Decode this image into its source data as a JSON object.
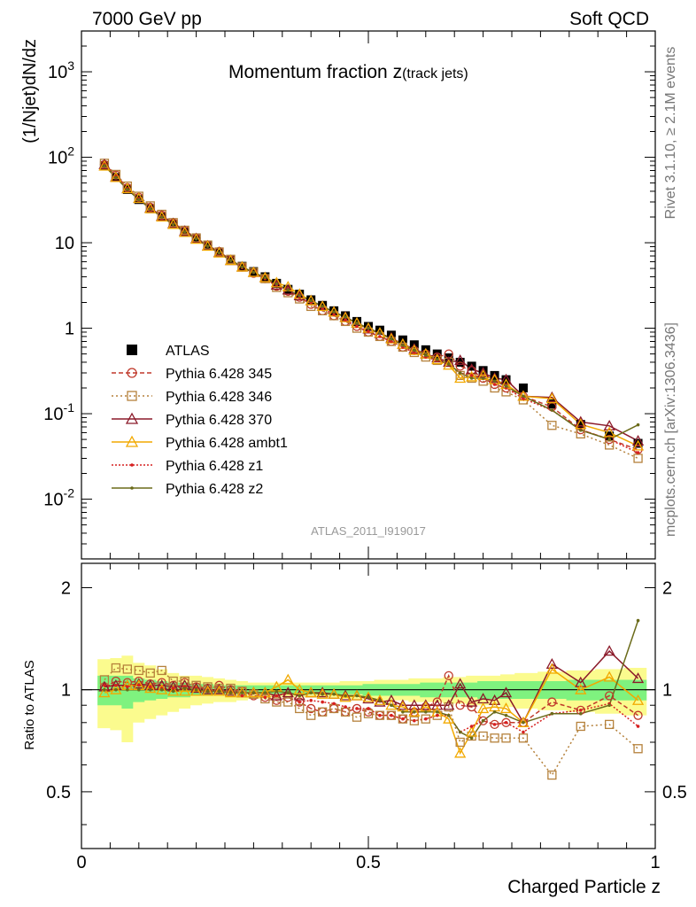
{
  "header": {
    "left_label": "7000 GeV pp",
    "right_label": "Soft QCD"
  },
  "side_text": {
    "rivet": "Rivet 3.1.10, ≥ 2.1M events",
    "mcplots": "mcplots.cern.ch [arXiv:1306.3436]"
  },
  "colors": {
    "data": "#000000",
    "band_inner": "#7ff27f",
    "band_outer": "#fbfb8e",
    "p345": "#c0392b",
    "p346": "#b5813b",
    "p370": "#8b1a2a",
    "ambt1": "#f2a900",
    "z1": "#d62020",
    "z2": "#6b6b1a"
  },
  "chart_data": [
    {
      "type": "line",
      "title": "Momentum fraction z",
      "title_sub": "(track jets)",
      "analysis_label": "ATLAS_2011_I919017",
      "ylabel": "(1/Njet)dN/dz",
      "xlabel": "",
      "ylog": true,
      "xlim": [
        0,
        1
      ],
      "ylim": [
        0.002,
        3000
      ],
      "y_ticks": [
        "10^-2",
        "10^-1",
        "1",
        "10",
        "10^2",
        "10^3"
      ],
      "x": [
        0.04,
        0.06,
        0.08,
        0.1,
        0.12,
        0.14,
        0.16,
        0.18,
        0.2,
        0.22,
        0.24,
        0.26,
        0.28,
        0.3,
        0.32,
        0.34,
        0.36,
        0.38,
        0.4,
        0.42,
        0.44,
        0.46,
        0.48,
        0.5,
        0.52,
        0.54,
        0.56,
        0.58,
        0.6,
        0.62,
        0.64,
        0.66,
        0.68,
        0.7,
        0.72,
        0.74,
        0.77,
        0.82,
        0.87,
        0.92,
        0.97
      ],
      "legend_position": "left-middle",
      "series": [
        {
          "name": "ATLAS",
          "key": "data",
          "values": [
            80,
            58,
            42,
            32,
            25,
            20,
            16.5,
            13.3,
            11.1,
            9.2,
            7.7,
            6.3,
            5.3,
            4.6,
            4.0,
            3.35,
            2.85,
            2.5,
            2.15,
            1.85,
            1.6,
            1.4,
            1.2,
            1.05,
            0.95,
            0.83,
            0.73,
            0.64,
            0.56,
            0.5,
            0.45,
            0.4,
            0.36,
            0.32,
            0.28,
            0.25,
            0.2,
            0.13,
            0.075,
            0.055,
            0.045
          ]
        },
        {
          "name": "Pythia 6.428 345",
          "key": "p345",
          "values": [
            82,
            62,
            44,
            34,
            26,
            21,
            17,
            14,
            11.3,
            9.3,
            7.9,
            6.3,
            5.2,
            4.4,
            3.8,
            3.1,
            2.7,
            2.3,
            1.9,
            1.6,
            1.4,
            1.2,
            1.05,
            0.9,
            0.8,
            0.7,
            0.6,
            0.55,
            0.5,
            0.46,
            0.5,
            0.36,
            0.32,
            0.26,
            0.22,
            0.2,
            0.16,
            0.12,
            0.065,
            0.05,
            0.038
          ]
        },
        {
          "name": "Pythia 6.428 346",
          "key": "p346",
          "values": [
            85,
            63,
            46,
            35,
            27,
            21.5,
            17.2,
            14,
            11.4,
            9.4,
            7.8,
            6.4,
            5.2,
            4.5,
            3.8,
            3.0,
            2.6,
            2.2,
            1.8,
            1.6,
            1.4,
            1.2,
            1.0,
            0.9,
            0.8,
            0.7,
            0.6,
            0.52,
            0.46,
            0.42,
            0.4,
            0.28,
            0.26,
            0.24,
            0.2,
            0.18,
            0.145,
            0.073,
            0.058,
            0.043,
            0.03
          ]
        },
        {
          "name": "Pythia 6.428 370",
          "key": "p370",
          "values": [
            82,
            59,
            43,
            33,
            25.5,
            20.5,
            16.8,
            13.6,
            11.2,
            9.2,
            7.7,
            6.2,
            5.2,
            4.5,
            3.9,
            3.2,
            2.8,
            2.4,
            2.1,
            1.8,
            1.55,
            1.35,
            1.15,
            0.98,
            0.87,
            0.77,
            0.65,
            0.57,
            0.5,
            0.45,
            0.4,
            0.42,
            0.33,
            0.3,
            0.26,
            0.25,
            0.16,
            0.155,
            0.08,
            0.072,
            0.048
          ]
        },
        {
          "name": "Pythia 6.428 ambt1",
          "key": "ambt1",
          "values": [
            79,
            58,
            43,
            33,
            25,
            20,
            16.4,
            13.2,
            11,
            9.1,
            7.6,
            6.2,
            5.2,
            4.5,
            3.9,
            3.4,
            3.05,
            2.5,
            2.1,
            1.8,
            1.55,
            1.33,
            1.15,
            1.0,
            0.88,
            0.75,
            0.65,
            0.55,
            0.5,
            0.43,
            0.37,
            0.26,
            0.27,
            0.28,
            0.25,
            0.22,
            0.16,
            0.15,
            0.075,
            0.06,
            0.042
          ]
        },
        {
          "name": "Pythia 6.428 z1",
          "key": "z1",
          "values": [
            82,
            60,
            43,
            33,
            25.5,
            20.2,
            16.6,
            13.5,
            11.2,
            9.1,
            7.6,
            6.2,
            5.1,
            4.5,
            3.8,
            3.2,
            2.8,
            2.3,
            2.0,
            1.7,
            1.45,
            1.25,
            1.05,
            0.92,
            0.8,
            0.7,
            0.6,
            0.52,
            0.46,
            0.42,
            0.38,
            0.3,
            0.28,
            0.26,
            0.22,
            0.2,
            0.15,
            0.11,
            0.065,
            0.05,
            0.035
          ]
        },
        {
          "name": "Pythia 6.428 z2",
          "key": "z2",
          "values": [
            80,
            58,
            42,
            32,
            25,
            20,
            16.4,
            13.4,
            11.1,
            9.1,
            7.6,
            6.2,
            5.2,
            4.5,
            3.9,
            3.3,
            2.8,
            2.4,
            2.1,
            1.8,
            1.55,
            1.35,
            1.15,
            1.0,
            0.88,
            0.75,
            0.63,
            0.55,
            0.48,
            0.43,
            0.38,
            0.3,
            0.26,
            0.26,
            0.24,
            0.21,
            0.16,
            0.11,
            0.064,
            0.05,
            0.074
          ]
        }
      ]
    },
    {
      "type": "line",
      "title": "",
      "xlabel": "Charged Particle z",
      "ylabel": "Ratio to ATLAS",
      "xlim": [
        0,
        1
      ],
      "ylim": [
        0.34,
        2.36
      ],
      "x_ticks": [
        "0",
        "0.5",
        "1"
      ],
      "y_ticks": [
        "0.5",
        "1",
        "2"
      ],
      "x": [
        0.04,
        0.06,
        0.08,
        0.1,
        0.12,
        0.14,
        0.16,
        0.18,
        0.2,
        0.22,
        0.24,
        0.26,
        0.28,
        0.3,
        0.32,
        0.34,
        0.36,
        0.38,
        0.4,
        0.42,
        0.44,
        0.46,
        0.48,
        0.5,
        0.52,
        0.54,
        0.56,
        0.58,
        0.6,
        0.62,
        0.64,
        0.66,
        0.68,
        0.7,
        0.72,
        0.74,
        0.77,
        0.82,
        0.87,
        0.92,
        0.97
      ],
      "bands": {
        "outer_upper": [
          1.23,
          1.24,
          1.26,
          1.2,
          1.18,
          1.15,
          1.12,
          1.1,
          1.1,
          1.09,
          1.08,
          1.07,
          1.06,
          1.05,
          1.05,
          1.05,
          1.05,
          1.05,
          1.05,
          1.05,
          1.05,
          1.06,
          1.06,
          1.06,
          1.07,
          1.07,
          1.07,
          1.08,
          1.08,
          1.08,
          1.09,
          1.09,
          1.1,
          1.1,
          1.1,
          1.11,
          1.12,
          1.13,
          1.14,
          1.15,
          1.16
        ],
        "outer_lower": [
          0.77,
          0.76,
          0.7,
          0.8,
          0.82,
          0.84,
          0.86,
          0.88,
          0.9,
          0.91,
          0.92,
          0.92,
          0.93,
          0.94,
          0.94,
          0.95,
          0.95,
          0.95,
          0.95,
          0.95,
          0.95,
          0.94,
          0.94,
          0.94,
          0.93,
          0.93,
          0.93,
          0.92,
          0.92,
          0.92,
          0.91,
          0.91,
          0.9,
          0.9,
          0.9,
          0.89,
          0.88,
          0.87,
          0.86,
          0.85,
          0.84
        ],
        "inner_upper": [
          1.1,
          1.1,
          1.1,
          1.08,
          1.07,
          1.06,
          1.05,
          1.05,
          1.04,
          1.04,
          1.03,
          1.03,
          1.03,
          1.03,
          1.03,
          1.03,
          1.03,
          1.03,
          1.03,
          1.03,
          1.03,
          1.03,
          1.03,
          1.04,
          1.04,
          1.04,
          1.04,
          1.04,
          1.05,
          1.05,
          1.05,
          1.05,
          1.05,
          1.06,
          1.06,
          1.06,
          1.06,
          1.06,
          1.07,
          1.07,
          1.07
        ],
        "inner_lower": [
          0.9,
          0.9,
          0.88,
          0.92,
          0.93,
          0.94,
          0.95,
          0.95,
          0.96,
          0.96,
          0.97,
          0.97,
          0.97,
          0.97,
          0.97,
          0.97,
          0.97,
          0.97,
          0.97,
          0.97,
          0.97,
          0.97,
          0.97,
          0.96,
          0.96,
          0.96,
          0.96,
          0.96,
          0.95,
          0.95,
          0.95,
          0.95,
          0.95,
          0.94,
          0.94,
          0.94,
          0.94,
          0.94,
          0.93,
          0.93,
          0.93
        ]
      },
      "series": [
        {
          "name": "Pythia 6.428 345",
          "key": "p345",
          "values": [
            1.02,
            1.06,
            1.05,
            1.06,
            1.04,
            1.05,
            1.03,
            1.05,
            1.02,
            1.01,
            1.03,
            1.0,
            0.99,
            0.96,
            0.95,
            0.93,
            0.95,
            0.92,
            0.88,
            0.86,
            0.88,
            0.86,
            0.88,
            0.86,
            0.84,
            0.84,
            0.82,
            0.86,
            0.89,
            0.92,
            1.1,
            0.9,
            0.89,
            0.81,
            0.79,
            0.8,
            0.8,
            0.92,
            0.87,
            0.96,
            0.84
          ]
        },
        {
          "name": "Pythia 6.428 346",
          "key": "p346",
          "values": [
            1.07,
            1.16,
            1.15,
            1.14,
            1.12,
            1.14,
            1.06,
            1.06,
            1.03,
            1.02,
            1.01,
            1.01,
            0.99,
            0.97,
            0.94,
            0.92,
            0.92,
            0.88,
            0.84,
            0.86,
            0.88,
            0.86,
            0.83,
            0.85,
            0.84,
            0.84,
            0.82,
            0.81,
            0.82,
            0.84,
            0.89,
            0.7,
            0.73,
            0.73,
            0.72,
            0.72,
            0.72,
            0.56,
            0.78,
            0.79,
            0.67
          ]
        },
        {
          "name": "Pythia 6.428 370",
          "key": "p370",
          "values": [
            1.02,
            1.03,
            1.03,
            1.04,
            1.03,
            1.03,
            1.02,
            1.03,
            1.01,
            1.0,
            1.0,
            0.99,
            0.98,
            0.98,
            0.98,
            0.96,
            0.98,
            0.96,
            0.98,
            0.98,
            0.97,
            0.96,
            0.96,
            0.94,
            0.92,
            0.93,
            0.9,
            0.9,
            0.9,
            0.9,
            0.9,
            1.04,
            0.92,
            0.94,
            0.93,
            0.98,
            0.8,
            1.19,
            1.05,
            1.3,
            1.08
          ]
        },
        {
          "name": "Pythia 6.428 ambt1",
          "key": "ambt1",
          "values": [
            0.98,
            1.0,
            1.03,
            1.03,
            1.01,
            1.0,
            0.99,
            0.99,
            0.99,
            0.99,
            0.99,
            0.98,
            0.98,
            0.98,
            0.98,
            1.02,
            1.07,
            1.0,
            0.98,
            0.97,
            0.97,
            0.95,
            0.96,
            0.95,
            0.93,
            0.9,
            0.89,
            0.86,
            0.89,
            0.86,
            0.82,
            0.65,
            0.75,
            0.88,
            0.89,
            0.88,
            0.8,
            1.15,
            1.0,
            1.09,
            0.93
          ]
        },
        {
          "name": "Pythia 6.428 z1",
          "key": "z1",
          "values": [
            1.03,
            1.03,
            1.02,
            1.03,
            1.02,
            1.01,
            1.01,
            1.02,
            1.01,
            0.99,
            0.99,
            0.98,
            0.96,
            0.98,
            0.95,
            0.96,
            0.98,
            0.92,
            0.93,
            0.92,
            0.91,
            0.89,
            0.88,
            0.88,
            0.84,
            0.84,
            0.82,
            0.81,
            0.82,
            0.84,
            0.84,
            0.75,
            0.78,
            0.81,
            0.79,
            0.8,
            0.75,
            0.85,
            0.87,
            0.91,
            0.78
          ]
        },
        {
          "name": "Pythia 6.428 z2",
          "key": "z2",
          "values": [
            1.0,
            1.0,
            1.0,
            1.0,
            1.0,
            1.0,
            0.99,
            1.01,
            1.0,
            0.99,
            0.99,
            0.98,
            0.98,
            0.98,
            0.98,
            0.99,
            0.98,
            0.96,
            0.98,
            0.97,
            0.97,
            0.96,
            0.96,
            0.95,
            0.93,
            0.9,
            0.86,
            0.86,
            0.86,
            0.86,
            0.84,
            0.75,
            0.72,
            0.81,
            0.86,
            0.84,
            0.8,
            0.85,
            0.85,
            0.9,
            1.6
          ]
        }
      ]
    }
  ]
}
